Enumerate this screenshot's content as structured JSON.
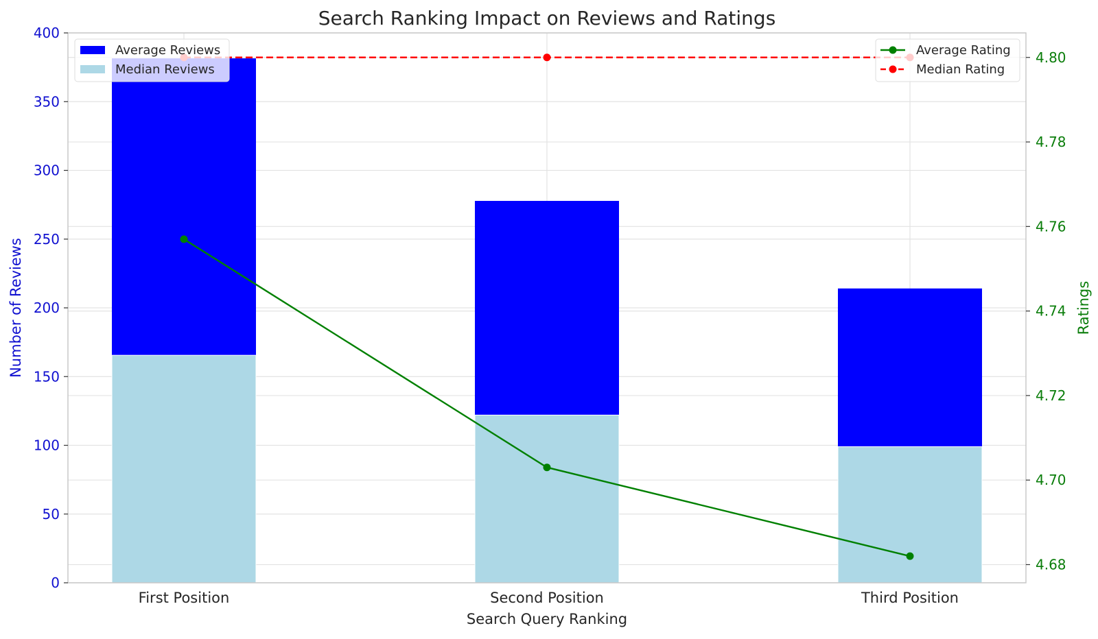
{
  "chart_data": {
    "type": "bar",
    "title": "Search Ranking Impact on Reviews and Ratings",
    "xlabel": "Search Query Ranking",
    "ylabel": "Number of Reviews",
    "y2label": "Ratings",
    "categories": [
      "First Position",
      "Second Position",
      "Third Position"
    ],
    "ylim": [
      0,
      400
    ],
    "yticks": [
      0,
      50,
      100,
      150,
      200,
      250,
      300,
      350,
      400
    ],
    "y2lim": [
      4.6757,
      4.8058
    ],
    "y2ticks": [
      "4.68",
      "4.70",
      "4.72",
      "4.74",
      "4.76",
      "4.78",
      "4.80"
    ],
    "grid": true,
    "series": [
      {
        "name": "Average Reviews",
        "type": "bar",
        "axis": "left",
        "color": "#0000ff",
        "values": [
          381.5,
          277.8,
          214.1
        ]
      },
      {
        "name": "Median Reviews",
        "type": "bar",
        "axis": "left",
        "color": "#add8e6",
        "values": [
          165.5,
          122.0,
          99.0
        ]
      },
      {
        "name": "Average Rating",
        "type": "line",
        "axis": "right",
        "color": "#008000",
        "linestyle": "solid",
        "marker": "o",
        "values": [
          4.757,
          4.703,
          4.682
        ]
      },
      {
        "name": "Median Rating",
        "type": "line",
        "axis": "right",
        "color": "#ff0000",
        "linestyle": "dashed",
        "marker": "o",
        "values": [
          4.8,
          4.8,
          4.8
        ]
      }
    ],
    "legend_left": [
      "Average Reviews",
      "Median Reviews"
    ],
    "legend_right": [
      "Average Rating",
      "Median Rating"
    ],
    "legend_position": "upper left (bars) / upper right (lines)"
  },
  "colors": {
    "left_axis": "#1010d0",
    "right_axis": "#0a7d0a",
    "text": "#262626",
    "grid": "#e3e3e3",
    "spine": "#c8c8c8"
  }
}
